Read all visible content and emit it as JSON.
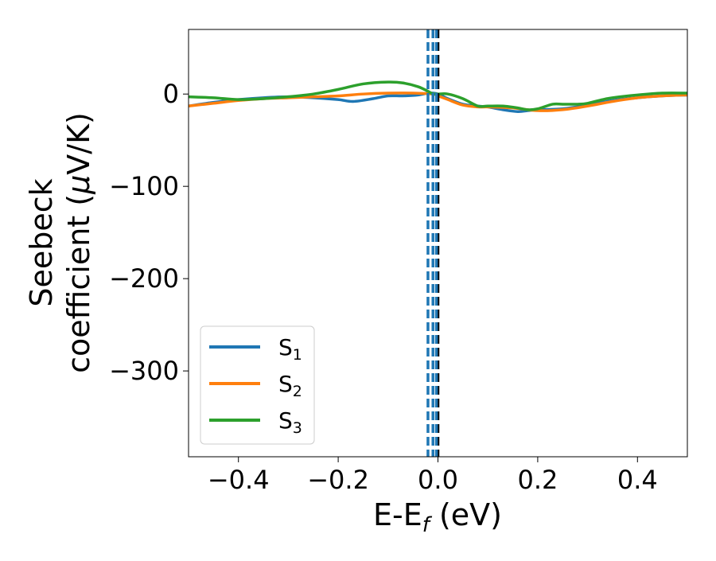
{
  "chart_data": {
    "type": "line",
    "title": "",
    "xlabel": "E-E",
    "xlabel_sub": "f",
    "xlabel_unit": " (eV)",
    "ylabel_line1": "Seebeck",
    "ylabel_line2": "coefficient  (",
    "ylabel_mu": "μ",
    "ylabel_unit": "V/K)",
    "xlim": [
      -0.5,
      0.5
    ],
    "ylim": [
      -393,
      70
    ],
    "xticks": [
      -0.4,
      -0.2,
      0.0,
      0.2,
      0.4
    ],
    "xtick_labels": [
      "−0.4",
      "−0.2",
      "0.0",
      "0.2",
      "0.4"
    ],
    "yticks": [
      0,
      -100,
      -200,
      -300
    ],
    "ytick_labels": [
      "0",
      "−100",
      "−200",
      "−300"
    ],
    "grid": false,
    "legend_position": "lower-left",
    "vlines": [
      {
        "x": -0.02,
        "color": "#1f77b4",
        "style": "dashed"
      },
      {
        "x": -0.01,
        "color": "#1f77b4",
        "style": "dashed"
      },
      {
        "x": 0.0,
        "color": "#000000",
        "style": "dashed"
      },
      {
        "x": -0.003,
        "color": "#1f77b4",
        "style": "dashed"
      }
    ],
    "series": [
      {
        "name": "S",
        "sub": "1",
        "color": "#1f77b4",
        "x": [
          -0.5,
          -0.45,
          -0.4,
          -0.35,
          -0.3,
          -0.25,
          -0.2,
          -0.17,
          -0.13,
          -0.1,
          -0.07,
          -0.04,
          -0.02,
          -0.01,
          0.0,
          0.02,
          0.05,
          0.08,
          0.1,
          0.13,
          0.16,
          0.18,
          0.2,
          0.25,
          0.3,
          0.35,
          0.4,
          0.45,
          0.5
        ],
        "y": [
          -13,
          -9,
          -6,
          -4,
          -3,
          -4,
          -6,
          -8,
          -5,
          -2,
          -2,
          -1,
          1,
          1,
          0,
          -5,
          -11,
          -13,
          -14,
          -17,
          -19,
          -18,
          -17,
          -16,
          -12,
          -7,
          -4,
          -2,
          -1
        ]
      },
      {
        "name": "S",
        "sub": "2",
        "color": "#ff7f0e",
        "x": [
          -0.5,
          -0.45,
          -0.4,
          -0.35,
          -0.3,
          -0.25,
          -0.2,
          -0.15,
          -0.1,
          -0.05,
          -0.01,
          0.0,
          0.02,
          0.05,
          0.08,
          0.1,
          0.15,
          0.2,
          0.25,
          0.3,
          0.35,
          0.4,
          0.45,
          0.5
        ],
        "y": [
          -13,
          -10,
          -7,
          -5,
          -4,
          -3,
          -2,
          0,
          1,
          1,
          0,
          -2,
          -6,
          -12,
          -14,
          -14,
          -15,
          -18,
          -17,
          -13,
          -8,
          -4,
          -2,
          -1
        ]
      },
      {
        "name": "S",
        "sub": "3",
        "color": "#2ca02c",
        "x": [
          -0.5,
          -0.45,
          -0.4,
          -0.35,
          -0.3,
          -0.25,
          -0.2,
          -0.15,
          -0.1,
          -0.07,
          -0.04,
          -0.02,
          -0.01,
          0.0,
          0.02,
          0.05,
          0.08,
          0.1,
          0.13,
          0.16,
          0.18,
          0.2,
          0.23,
          0.25,
          0.28,
          0.3,
          0.33,
          0.35,
          0.4,
          0.45,
          0.5
        ],
        "y": [
          -3,
          -4,
          -6,
          -5,
          -3,
          0,
          5,
          11,
          13,
          12,
          8,
          3,
          0,
          0,
          0,
          -5,
          -13,
          -13,
          -13,
          -15,
          -17,
          -16,
          -11,
          -11,
          -11,
          -10,
          -6,
          -4,
          -1,
          1,
          1
        ]
      }
    ]
  }
}
